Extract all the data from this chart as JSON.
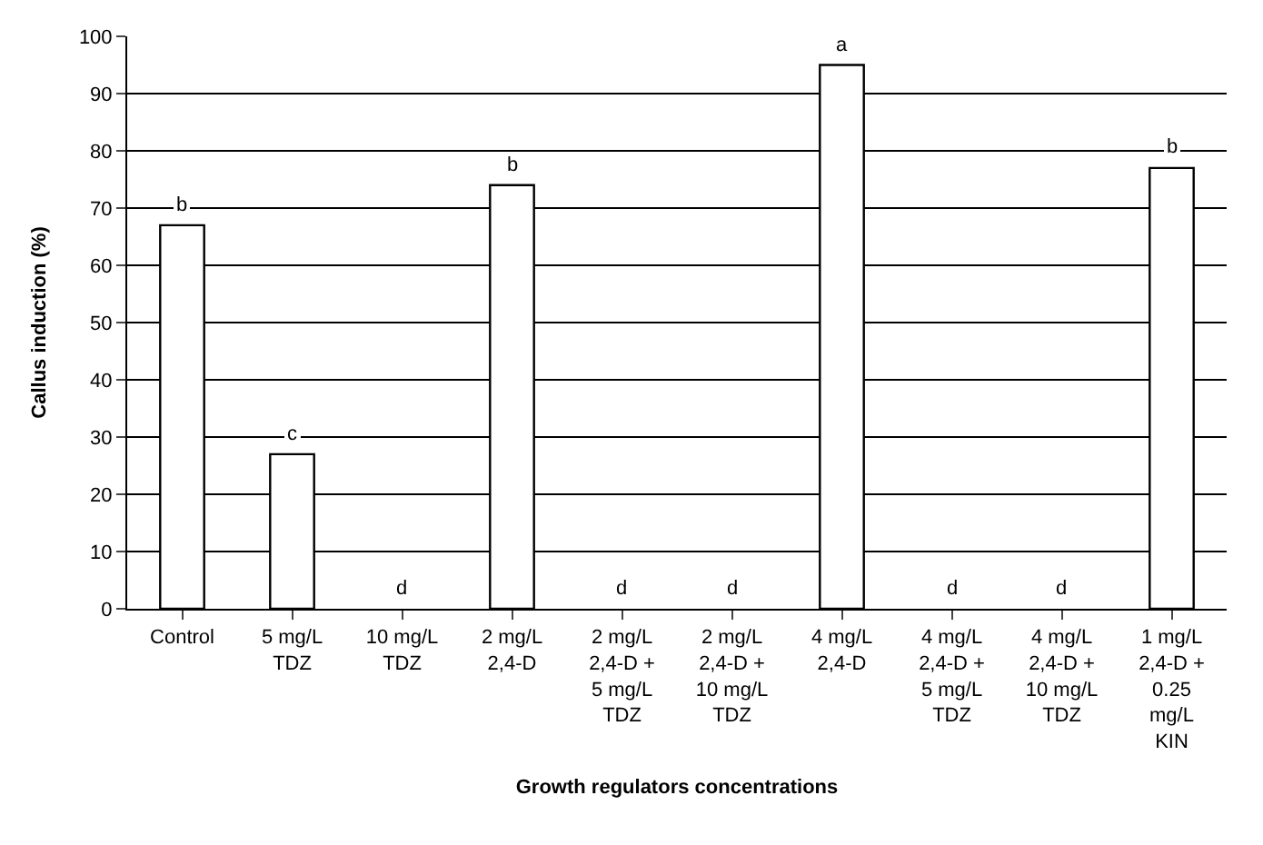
{
  "chart_data": {
    "type": "bar",
    "xlabel": "Growth regulators concentrations",
    "ylabel": "Callus induction (%)",
    "categories": [
      "Control",
      "5 mg/L\nTDZ",
      "10 mg/L\nTDZ",
      "2 mg/L\n2,4-D",
      "2 mg/L\n2,4-D +\n5 mg/L\nTDZ",
      "2 mg/L\n2,4-D +\n10 mg/L\nTDZ",
      "4 mg/L\n2,4-D",
      "4 mg/L\n2,4-D +\n5 mg/L\nTDZ",
      "4 mg/L\n2,4-D +\n10 mg/L\nTDZ",
      "1 mg/L\n2,4-D +\n0.25\nmg/L\nKIN"
    ],
    "values": [
      67,
      27,
      0,
      74,
      0,
      0,
      95,
      0,
      0,
      77
    ],
    "color": "#ffffff",
    "value_labels": [
      "b",
      "c",
      "d",
      "b",
      "d",
      "d",
      "a",
      "d",
      "d",
      "b"
    ],
    "ylim": [
      0,
      100
    ],
    "yticks": [
      0,
      10,
      20,
      30,
      40,
      50,
      60,
      70,
      80,
      90,
      100
    ],
    "grid": "y"
  }
}
